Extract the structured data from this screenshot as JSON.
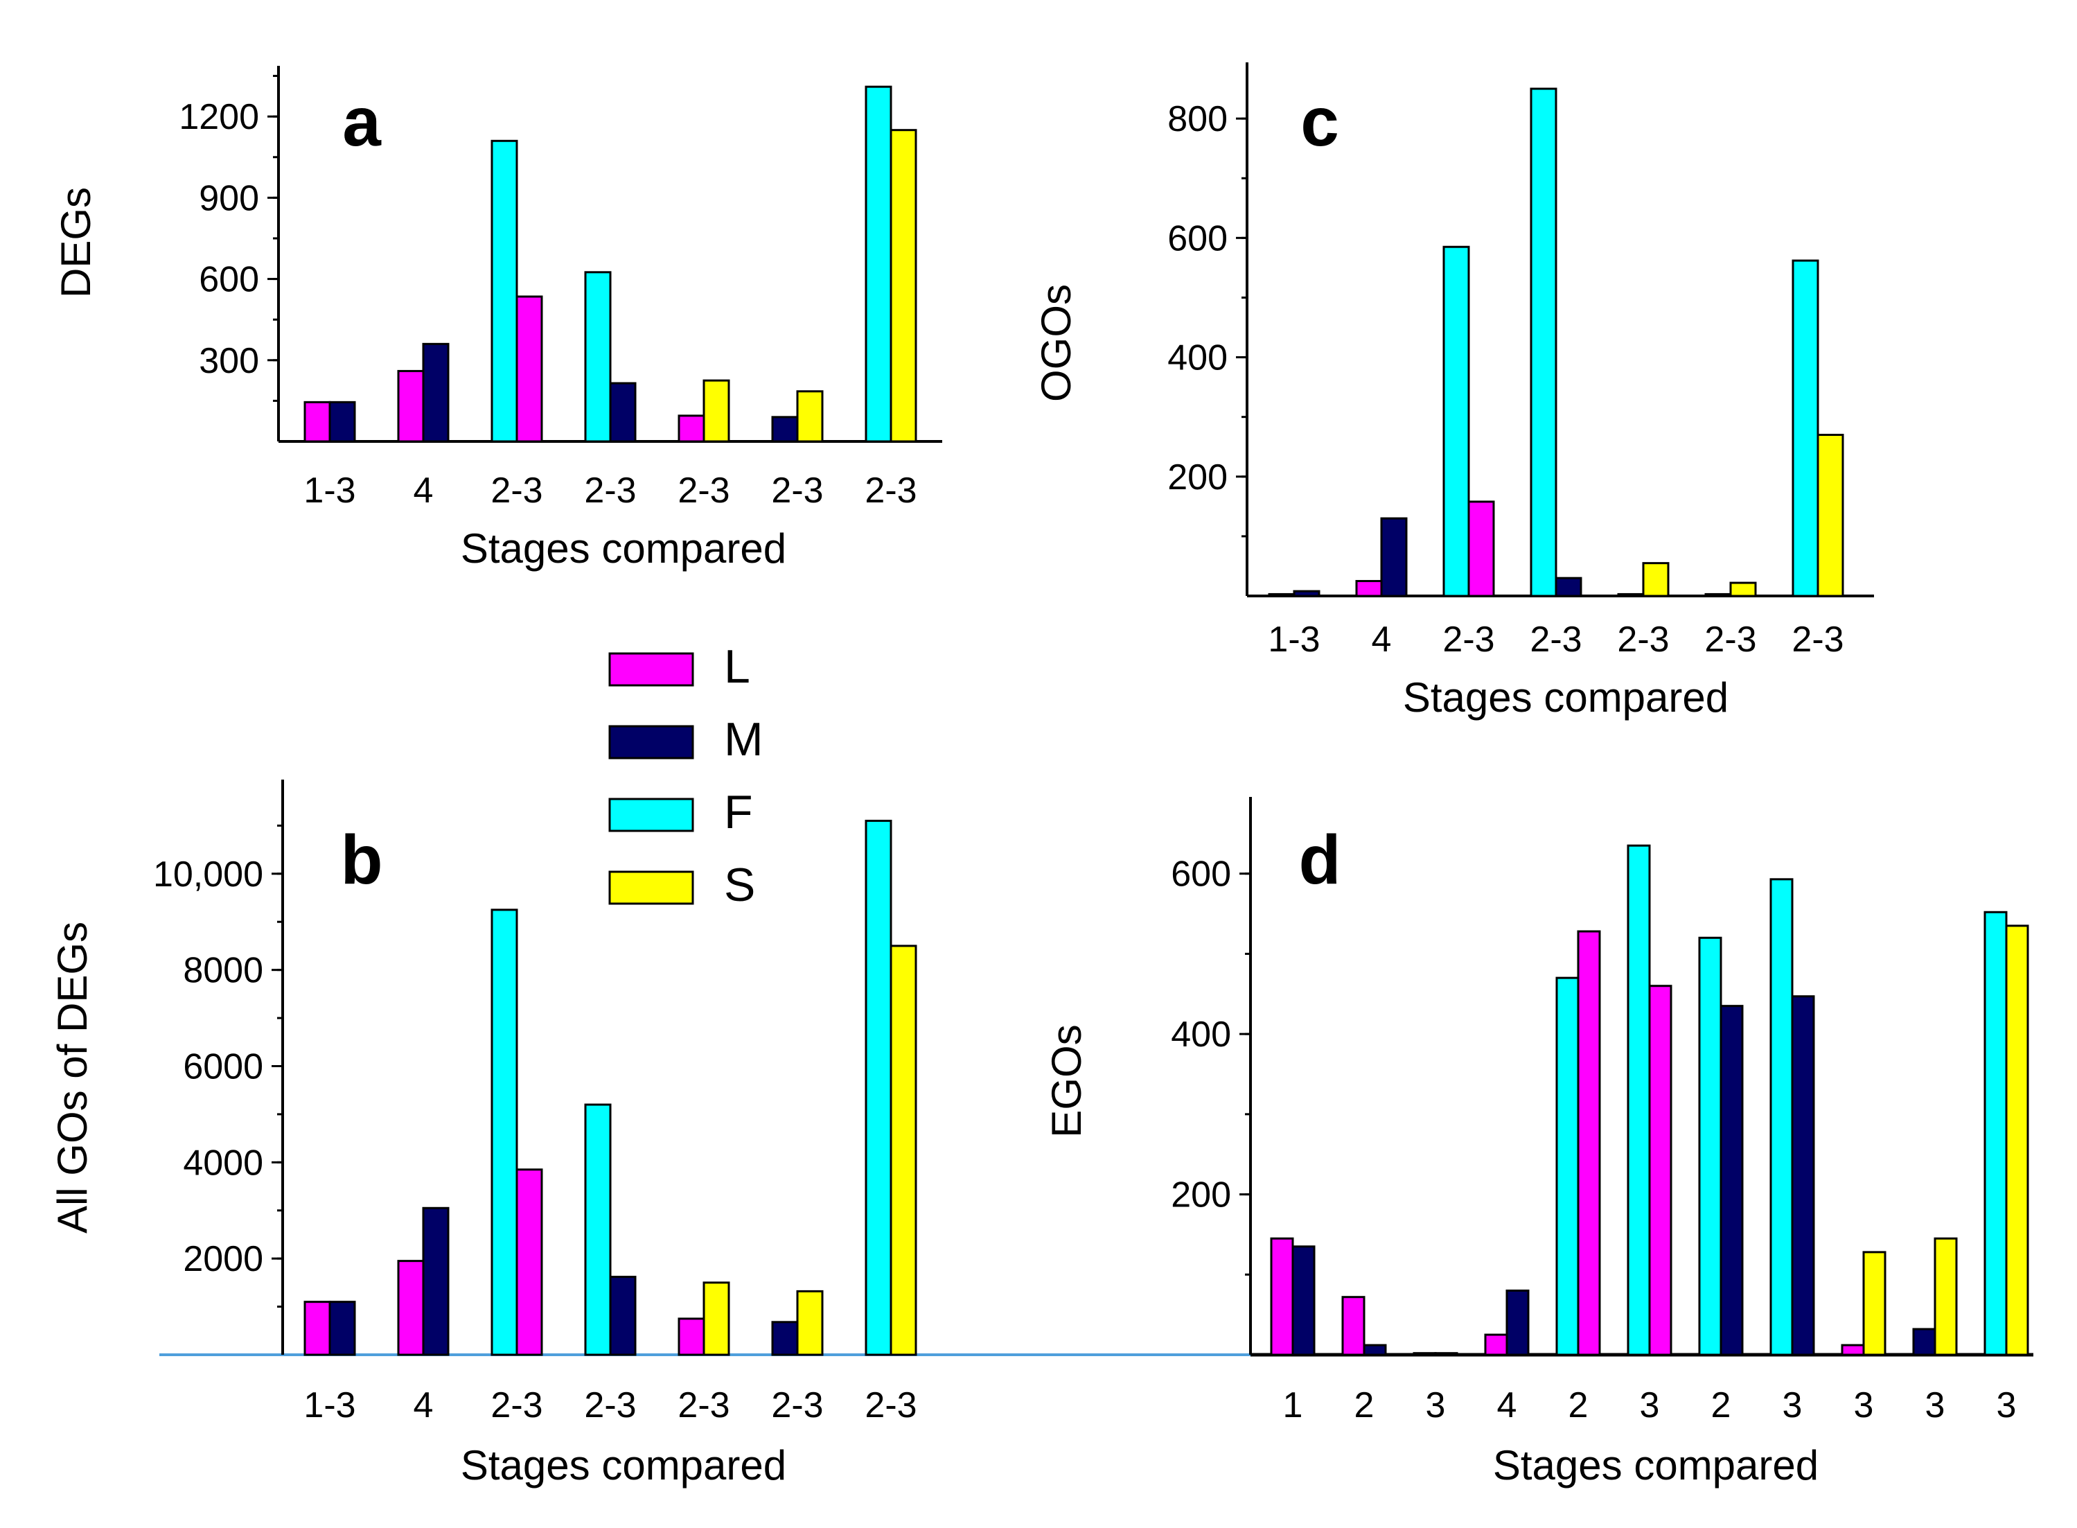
{
  "colors": {
    "L": "#ff00ff",
    "M": "#000066",
    "F": "#00ffff",
    "S": "#ffff00",
    "baseline": "#4f9fdc"
  },
  "legend": [
    {
      "key": "L",
      "label": "L"
    },
    {
      "key": "M",
      "label": "M"
    },
    {
      "key": "F",
      "label": "F"
    },
    {
      "key": "S",
      "label": "S"
    }
  ],
  "chart_data": [
    {
      "id": "a",
      "type": "bar",
      "panel_label": "a",
      "ylabel": "DEGs",
      "xlabel": "Stages compared",
      "ylim": [
        0,
        1400
      ],
      "yticks": [
        300,
        600,
        900,
        1200
      ],
      "ytick_labels": [
        "300",
        "600",
        "900",
        "1200"
      ],
      "categories": [
        "1-3",
        "4",
        "2-3",
        "2-3",
        "2-3",
        "2-3",
        "2-3"
      ],
      "groups": [
        [
          {
            "series": "L",
            "value": 145
          },
          {
            "series": "M",
            "value": 145
          }
        ],
        [
          {
            "series": "L",
            "value": 260
          },
          {
            "series": "M",
            "value": 360
          }
        ],
        [
          {
            "series": "F",
            "value": 1110
          },
          {
            "series": "L",
            "value": 535
          }
        ],
        [
          {
            "series": "F",
            "value": 625
          },
          {
            "series": "M",
            "value": 215
          }
        ],
        [
          {
            "series": "L",
            "value": 95
          },
          {
            "series": "S",
            "value": 225
          }
        ],
        [
          {
            "series": "M",
            "value": 90
          },
          {
            "series": "S",
            "value": 185
          }
        ],
        [
          {
            "series": "F",
            "value": 1310
          },
          {
            "series": "S",
            "value": 1150
          }
        ]
      ]
    },
    {
      "id": "b",
      "type": "bar",
      "panel_label": "b",
      "ylabel": "All GOs of DEGs",
      "xlabel": "Stages compared",
      "ylim": [
        0,
        12000
      ],
      "yticks": [
        2000,
        4000,
        6000,
        8000,
        10000
      ],
      "ytick_labels": [
        "2000",
        "4000",
        "6000",
        "8000",
        "10,000"
      ],
      "categories": [
        "1-3",
        "4",
        "2-3",
        "2-3",
        "2-3",
        "2-3",
        "2-3"
      ],
      "groups": [
        [
          {
            "series": "L",
            "value": 1100
          },
          {
            "series": "M",
            "value": 1100
          }
        ],
        [
          {
            "series": "L",
            "value": 1950
          },
          {
            "series": "M",
            "value": 3050
          }
        ],
        [
          {
            "series": "F",
            "value": 9250
          },
          {
            "series": "L",
            "value": 3850
          }
        ],
        [
          {
            "series": "F",
            "value": 5200
          },
          {
            "series": "M",
            "value": 1620
          }
        ],
        [
          {
            "series": "L",
            "value": 750
          },
          {
            "series": "S",
            "value": 1500
          }
        ],
        [
          {
            "series": "M",
            "value": 680
          },
          {
            "series": "S",
            "value": 1320
          }
        ],
        [
          {
            "series": "F",
            "value": 11100
          },
          {
            "series": "S",
            "value": 8500
          }
        ]
      ]
    },
    {
      "id": "c",
      "type": "bar",
      "panel_label": "c",
      "ylabel": "OGOs",
      "xlabel": "Stages compared",
      "ylim": [
        0,
        900
      ],
      "yticks": [
        200,
        400,
        600,
        800
      ],
      "ytick_labels": [
        "200",
        "400",
        "600",
        "800"
      ],
      "categories": [
        "1-3",
        "4",
        "2-3",
        "2-3",
        "2-3",
        "2-3",
        "2-3"
      ],
      "groups": [
        [
          {
            "series": "L",
            "value": 3
          },
          {
            "series": "M",
            "value": 8
          }
        ],
        [
          {
            "series": "L",
            "value": 25
          },
          {
            "series": "M",
            "value": 130
          }
        ],
        [
          {
            "series": "F",
            "value": 585
          },
          {
            "series": "L",
            "value": 158
          }
        ],
        [
          {
            "series": "F",
            "value": 850
          },
          {
            "series": "M",
            "value": 30
          }
        ],
        [
          {
            "series": "L",
            "value": 3
          },
          {
            "series": "S",
            "value": 55
          }
        ],
        [
          {
            "series": "M",
            "value": 3
          },
          {
            "series": "S",
            "value": 22
          }
        ],
        [
          {
            "series": "F",
            "value": 562
          },
          {
            "series": "S",
            "value": 270
          }
        ]
      ]
    },
    {
      "id": "d",
      "type": "bar",
      "panel_label": "d",
      "ylabel": "EGOs",
      "xlabel": "Stages compared",
      "ylim": [
        0,
        700
      ],
      "yticks": [
        200,
        400,
        600
      ],
      "ytick_labels": [
        "200",
        "400",
        "600"
      ],
      "categories": [
        "1",
        "2",
        "3",
        "4",
        "2",
        "3",
        "2",
        "3",
        "3",
        "3",
        "3"
      ],
      "groups": [
        [
          {
            "series": "L",
            "value": 145
          },
          {
            "series": "M",
            "value": 135
          }
        ],
        [
          {
            "series": "L",
            "value": 72
          },
          {
            "series": "M",
            "value": 12
          }
        ],
        [
          {
            "series": "L",
            "value": 2
          },
          {
            "series": "M",
            "value": 2
          }
        ],
        [
          {
            "series": "L",
            "value": 25
          },
          {
            "series": "M",
            "value": 80
          }
        ],
        [
          {
            "series": "F",
            "value": 470
          },
          {
            "series": "L",
            "value": 528
          }
        ],
        [
          {
            "series": "F",
            "value": 635
          },
          {
            "series": "L",
            "value": 460
          }
        ],
        [
          {
            "series": "F",
            "value": 520
          },
          {
            "series": "M",
            "value": 435
          }
        ],
        [
          {
            "series": "F",
            "value": 593
          },
          {
            "series": "M",
            "value": 447
          }
        ],
        [
          {
            "series": "L",
            "value": 12
          },
          {
            "series": "S",
            "value": 128
          }
        ],
        [
          {
            "series": "M",
            "value": 32
          },
          {
            "series": "S",
            "value": 145
          }
        ],
        [
          {
            "series": "F",
            "value": 552
          },
          {
            "series": "S",
            "value": 535
          }
        ]
      ]
    }
  ]
}
